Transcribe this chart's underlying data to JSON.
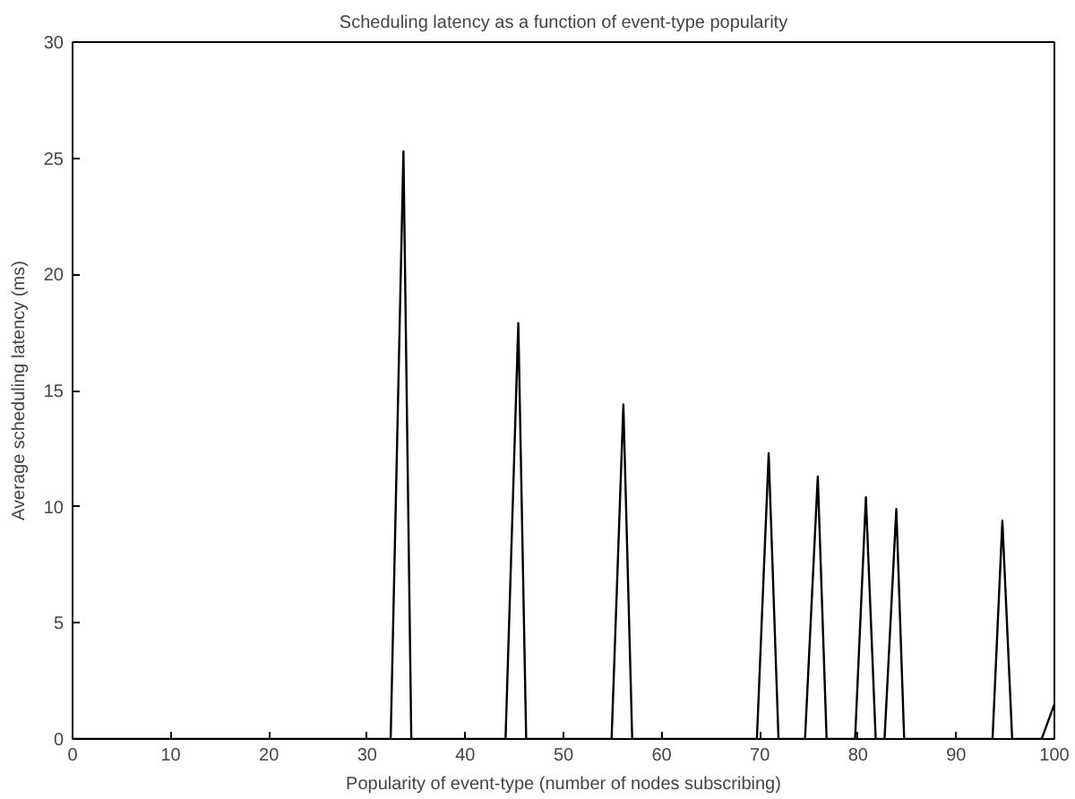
{
  "chart_data": {
    "type": "line",
    "title": "Scheduling latency as a function of event-type popularity",
    "xlabel": "Popularity of event-type (number of nodes subscribing)",
    "ylabel": "Average scheduling latency (ms)",
    "x": [
      0,
      32.4,
      33.7,
      34.5,
      44.1,
      45.4,
      46.2,
      54.9,
      56.1,
      57.0,
      69.7,
      70.9,
      71.9,
      74.6,
      75.9,
      76.8,
      79.7,
      80.8,
      81.8,
      82.7,
      83.9,
      84.7,
      93.7,
      94.7,
      95.7,
      98.7,
      100
    ],
    "series": [
      {
        "color": "#000000",
        "values": [
          0,
          0,
          25.3,
          0,
          0,
          17.9,
          0,
          0,
          14.4,
          0,
          0,
          12.3,
          0,
          0,
          11.3,
          0,
          0,
          10.4,
          0,
          0,
          9.9,
          0,
          0,
          9.4,
          0,
          0,
          1.5
        ]
      }
    ],
    "xlim": [
      0,
      100
    ],
    "ylim": [
      0,
      30
    ],
    "xticks": [
      0,
      10,
      20,
      30,
      40,
      50,
      60,
      70,
      80,
      90,
      100
    ],
    "yticks": [
      0,
      5,
      10,
      15,
      20,
      25,
      30
    ],
    "grid": false,
    "marker": "none",
    "line_style": "solid"
  }
}
